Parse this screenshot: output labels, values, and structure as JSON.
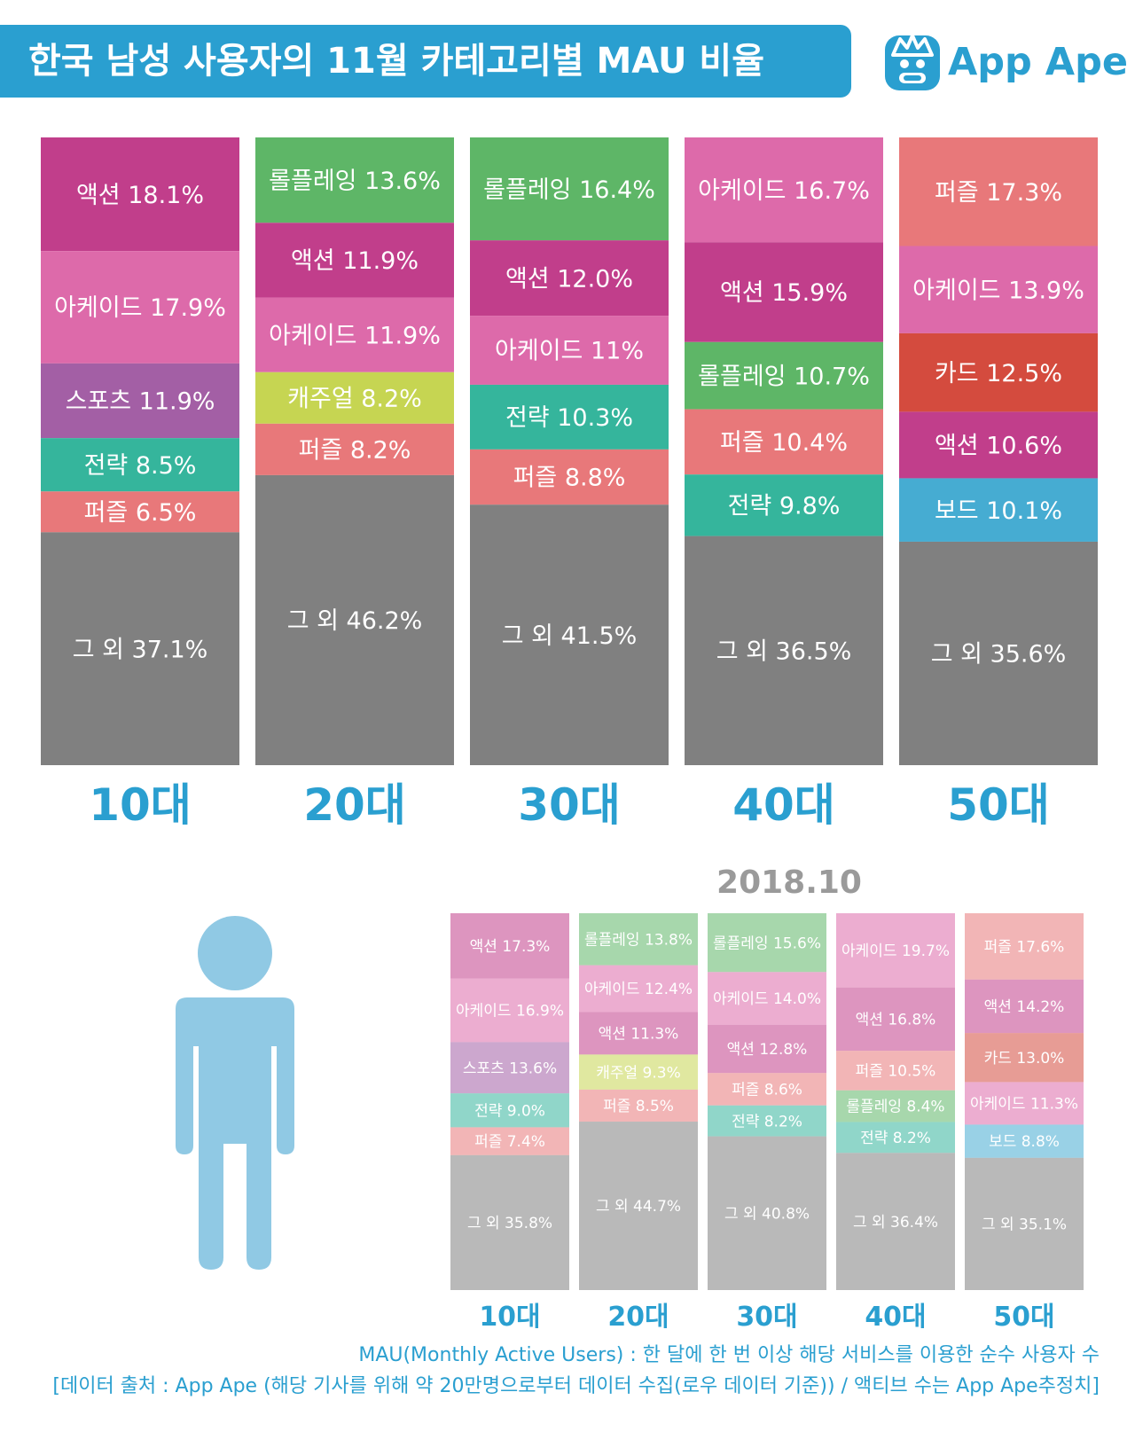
{
  "title": "한국 남성 사용자의 11월 카테고리별 MAU 비율",
  "logo": {
    "text": "App Ape",
    "icon": "ape-face-icon"
  },
  "colors": {
    "accent": "#2a9fd0",
    "액션": "#c13e8b",
    "아케이드": "#dd6aaa",
    "스포츠": "#a35fa5",
    "전략": "#35b59c",
    "퍼즐": "#e8787a",
    "롤플레잉": "#5eb667",
    "캐주얼": "#c6d552",
    "카드": "#d44b3e",
    "보드": "#46acd2",
    "그 외": "#808080"
  },
  "chart_data": [
    {
      "type": "stacked-bar",
      "title": "한국 남성 사용자의 11월 카테고리별 MAU 비율",
      "categories": [
        "10대",
        "20대",
        "30대",
        "40대",
        "50대"
      ],
      "stacks": [
        [
          {
            "category": "액션",
            "value": 18.1,
            "label": "액션 18.1%"
          },
          {
            "category": "아케이드",
            "value": 17.9,
            "label": "아케이드 17.9%"
          },
          {
            "category": "스포츠",
            "value": 11.9,
            "label": "스포츠 11.9%"
          },
          {
            "category": "전략",
            "value": 8.5,
            "label": "전략 8.5%"
          },
          {
            "category": "퍼즐",
            "value": 6.5,
            "label": "퍼즐 6.5%"
          },
          {
            "category": "그 외",
            "value": 37.1,
            "label": "그 외 37.1%"
          }
        ],
        [
          {
            "category": "롤플레잉",
            "value": 13.6,
            "label": "롤플레잉 13.6%"
          },
          {
            "category": "액션",
            "value": 11.9,
            "label": "액션 11.9%"
          },
          {
            "category": "아케이드",
            "value": 11.9,
            "label": "아케이드 11.9%"
          },
          {
            "category": "캐주얼",
            "value": 8.2,
            "label": "캐주얼 8.2%"
          },
          {
            "category": "퍼즐",
            "value": 8.2,
            "label": "퍼즐 8.2%"
          },
          {
            "category": "그 외",
            "value": 46.2,
            "label": "그 외 46.2%"
          }
        ],
        [
          {
            "category": "롤플레잉",
            "value": 16.4,
            "label": "롤플레잉 16.4%"
          },
          {
            "category": "액션",
            "value": 12.0,
            "label": "액션 12.0%"
          },
          {
            "category": "아케이드",
            "value": 11,
            "label": "아케이드 11%"
          },
          {
            "category": "전략",
            "value": 10.3,
            "label": "전략 10.3%"
          },
          {
            "category": "퍼즐",
            "value": 8.8,
            "label": "퍼즐 8.8%"
          },
          {
            "category": "그 외",
            "value": 41.5,
            "label": "그 외 41.5%"
          }
        ],
        [
          {
            "category": "아케이드",
            "value": 16.7,
            "label": "아케이드 16.7%"
          },
          {
            "category": "액션",
            "value": 15.9,
            "label": "액션 15.9%"
          },
          {
            "category": "롤플레잉",
            "value": 10.7,
            "label": "롤플레잉 10.7%"
          },
          {
            "category": "퍼즐",
            "value": 10.4,
            "label": "퍼즐 10.4%"
          },
          {
            "category": "전략",
            "value": 9.8,
            "label": "전략 9.8%"
          },
          {
            "category": "그 외",
            "value": 36.5,
            "label": "그 외 36.5%"
          }
        ],
        [
          {
            "category": "퍼즐",
            "value": 17.3,
            "label": "퍼즐 17.3%"
          },
          {
            "category": "아케이드",
            "value": 13.9,
            "label": "아케이드 13.9%"
          },
          {
            "category": "카드",
            "value": 12.5,
            "label": "카드 12.5%"
          },
          {
            "category": "액션",
            "value": 10.6,
            "label": "액션 10.6%"
          },
          {
            "category": "보드",
            "value": 10.1,
            "label": "보드 10.1%"
          },
          {
            "category": "그 외",
            "value": 35.6,
            "label": "그 외 35.6%"
          }
        ]
      ]
    },
    {
      "type": "stacked-bar",
      "title": "2018.10",
      "categories": [
        "10대",
        "20대",
        "30대",
        "40대",
        "50대"
      ],
      "stacks": [
        [
          {
            "category": "액션",
            "value": 17.3,
            "label": "액션 17.3%"
          },
          {
            "category": "아케이드",
            "value": 16.9,
            "label": "아케이드 16.9%"
          },
          {
            "category": "스포츠",
            "value": 13.6,
            "label": "스포츠 13.6%"
          },
          {
            "category": "전략",
            "value": 9.0,
            "label": "전략 9.0%"
          },
          {
            "category": "퍼즐",
            "value": 7.4,
            "label": "퍼즐 7.4%"
          },
          {
            "category": "그 외",
            "value": 35.8,
            "label": "그 외 35.8%"
          }
        ],
        [
          {
            "category": "롤플레잉",
            "value": 13.8,
            "label": "롤플레잉 13.8%"
          },
          {
            "category": "아케이드",
            "value": 12.4,
            "label": "아케이드 12.4%"
          },
          {
            "category": "액션",
            "value": 11.3,
            "label": "액션 11.3%"
          },
          {
            "category": "캐주얼",
            "value": 9.3,
            "label": "캐주얼 9.3%"
          },
          {
            "category": "퍼즐",
            "value": 8.5,
            "label": "퍼즐 8.5%"
          },
          {
            "category": "그 외",
            "value": 44.7,
            "label": "그 외 44.7%"
          }
        ],
        [
          {
            "category": "롤플레잉",
            "value": 15.6,
            "label": "롤플레잉 15.6%"
          },
          {
            "category": "아케이드",
            "value": 14.0,
            "label": "아케이드 14.0%"
          },
          {
            "category": "액션",
            "value": 12.8,
            "label": "액션 12.8%"
          },
          {
            "category": "퍼즐",
            "value": 8.6,
            "label": "퍼즐 8.6%"
          },
          {
            "category": "전략",
            "value": 8.2,
            "label": "전략 8.2%"
          },
          {
            "category": "그 외",
            "value": 40.8,
            "label": "그 외 40.8%"
          }
        ],
        [
          {
            "category": "아케이드",
            "value": 19.7,
            "label": "아케이드 19.7%"
          },
          {
            "category": "액션",
            "value": 16.8,
            "label": "액션 16.8%"
          },
          {
            "category": "퍼즐",
            "value": 10.5,
            "label": "퍼즐 10.5%"
          },
          {
            "category": "롤플레잉",
            "value": 8.4,
            "label": "롤플레잉 8.4%"
          },
          {
            "category": "전략",
            "value": 8.2,
            "label": "전략 8.2%"
          },
          {
            "category": "그 외",
            "value": 36.4,
            "label": "그 외 36.4%"
          }
        ],
        [
          {
            "category": "퍼즐",
            "value": 17.6,
            "label": "퍼즐 17.6%"
          },
          {
            "category": "액션",
            "value": 14.2,
            "label": "액션 14.2%"
          },
          {
            "category": "카드",
            "value": 13.0,
            "label": "카드 13.0%"
          },
          {
            "category": "아케이드",
            "value": 11.3,
            "label": "아케이드 11.3%"
          },
          {
            "category": "보드",
            "value": 8.8,
            "label": "보드 8.8%"
          },
          {
            "category": "그 외",
            "value": 35.1,
            "label": "그 외 35.1%"
          }
        ]
      ]
    }
  ],
  "figure": {
    "icon": "male-person-icon"
  },
  "footnotes": [
    "MAU(Monthly Active Users) : 한 달에 한 번 이상 해당 서비스를 이용한 순수 사용자 수",
    "[데이터 출처 : App Ape (해당 기사를 위해 약 20만명으로부터 데이터 수집(로우 데이터 기준)) / 액티브 수는 App Ape추정치]"
  ]
}
